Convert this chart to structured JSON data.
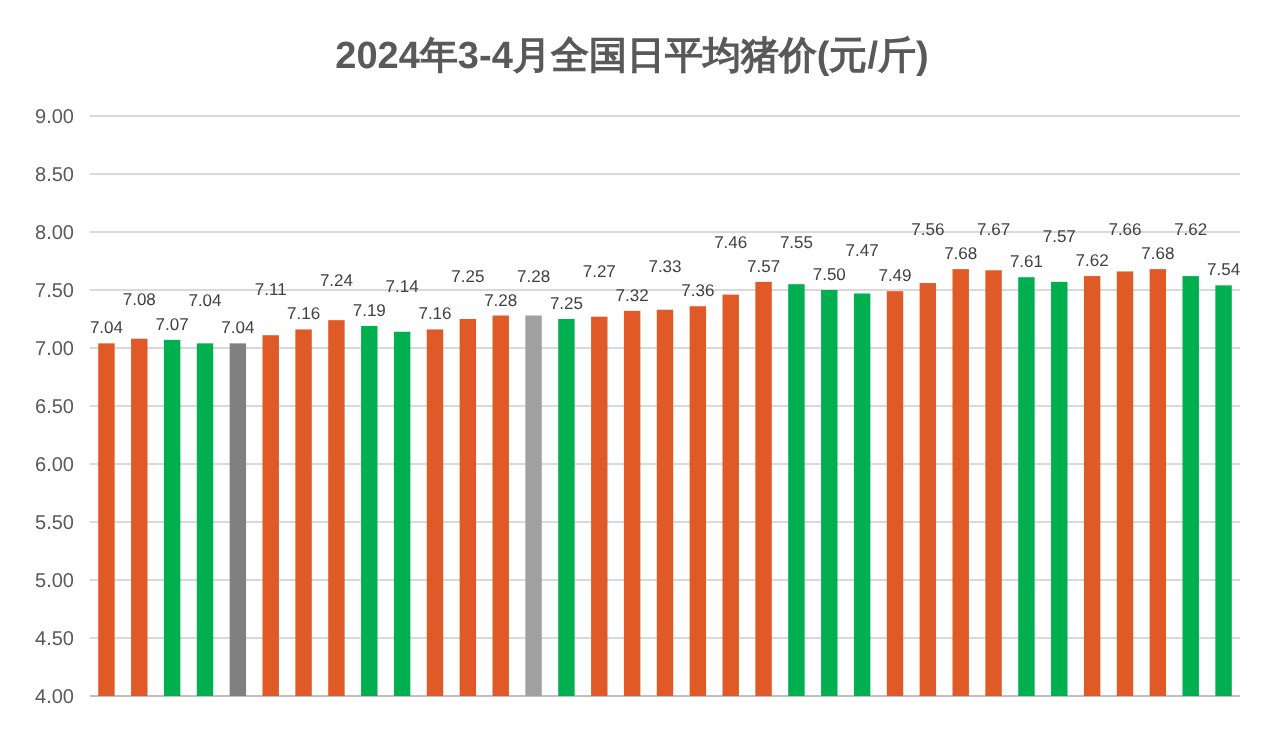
{
  "chart_data": {
    "type": "bar",
    "title": "2024年3-4月全国日平均猪价(元/斤)",
    "categories": [
      null,
      null,
      null,
      null,
      null,
      null,
      null,
      null,
      null,
      null,
      null,
      null,
      null,
      null,
      null,
      null,
      null,
      null,
      null,
      null,
      null,
      null,
      null,
      null,
      null,
      null,
      null,
      null,
      null,
      null,
      null,
      null,
      null,
      null,
      null
    ],
    "values": [
      7.04,
      7.08,
      7.07,
      7.04,
      7.04,
      7.11,
      7.16,
      7.24,
      7.19,
      7.14,
      7.16,
      7.25,
      7.28,
      7.28,
      7.25,
      7.27,
      7.32,
      7.33,
      7.36,
      7.46,
      7.57,
      7.55,
      7.5,
      7.47,
      7.49,
      7.56,
      7.68,
      7.67,
      7.61,
      7.57,
      7.62,
      7.66,
      7.68,
      7.62,
      7.54
    ],
    "value_labels": [
      "7.04",
      "7.08",
      "7.07",
      "7.04",
      "7.04",
      "7.11",
      "7.16",
      "7.24",
      "7.19",
      "7.14",
      "7.16",
      "7.25",
      "7.28",
      "7.28",
      "7.25",
      "7.27",
      "7.32",
      "7.33",
      "7.36",
      "7.46",
      "7.57",
      "7.55",
      "7.50",
      "7.47",
      "7.49",
      "7.56",
      "7.68",
      "7.67",
      "7.61",
      "7.57",
      "7.62",
      "7.66",
      "7.68",
      "7.62",
      "7.54"
    ],
    "colors": [
      "#e05a28",
      "#e05a28",
      "#00b050",
      "#00b050",
      "#808080",
      "#e05a28",
      "#e05a28",
      "#e05a28",
      "#00b050",
      "#00b050",
      "#e05a28",
      "#e05a28",
      "#e05a28",
      "#a0a0a0",
      "#00b050",
      "#e05a28",
      "#e05a28",
      "#e05a28",
      "#e05a28",
      "#e05a28",
      "#e05a28",
      "#00b050",
      "#00b050",
      "#00b050",
      "#e05a28",
      "#e05a28",
      "#e05a28",
      "#e05a28",
      "#00b050",
      "#00b050",
      "#e05a28",
      "#e05a28",
      "#e05a28",
      "#00b050",
      "#00b050"
    ],
    "ylim": [
      4,
      9
    ],
    "yticks": [
      {
        "value": 4,
        "label": "4.00"
      },
      {
        "value": 4.5,
        "label": "4.50"
      },
      {
        "value": 5,
        "label": "5.00"
      },
      {
        "value": 5.5,
        "label": "5.50"
      },
      {
        "value": 6,
        "label": "6.00"
      },
      {
        "value": 6.5,
        "label": "6.50"
      },
      {
        "value": 7,
        "label": "7.00"
      },
      {
        "value": 7.5,
        "label": "7.50"
      },
      {
        "value": 8,
        "label": "8.00"
      },
      {
        "value": 8.5,
        "label": "8.50"
      },
      {
        "value": 9,
        "label": "9.00"
      }
    ],
    "grid": "y"
  }
}
